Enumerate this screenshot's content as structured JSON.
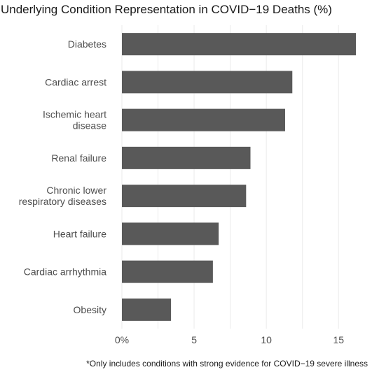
{
  "chart_data": {
    "type": "bar",
    "orientation": "horizontal",
    "title": "Underlying Condition Representation in COVID−19 Deaths (%)",
    "caption": "*Only includes conditions with strong evidence for COVID−19 severe illness",
    "categories": [
      "Diabetes",
      "Cardiac arrest",
      "Ischemic heart disease",
      "Renal failure",
      "Chronic lower respiratory diseases",
      "Heart failure",
      "Cardiac arrhythmia",
      "Obesity"
    ],
    "category_lines": [
      [
        "Diabetes"
      ],
      [
        "Cardiac arrest"
      ],
      [
        "Ischemic heart",
        "disease"
      ],
      [
        "Renal failure"
      ],
      [
        "Chronic lower",
        "respiratory diseases"
      ],
      [
        "Heart failure"
      ],
      [
        "Cardiac arrhythmia"
      ],
      [
        "Obesity"
      ]
    ],
    "values": [
      16.2,
      11.8,
      11.3,
      8.9,
      8.6,
      6.7,
      6.3,
      3.4
    ],
    "xlim": [
      0,
      16.2
    ],
    "xticks": [
      0,
      5,
      10,
      15
    ],
    "xtick_labels": [
      "0%",
      "5",
      "10",
      "15"
    ],
    "grid": true,
    "colors": {
      "bar": "#595959",
      "grid": "#ebebeb",
      "text": "#4d4d4d"
    }
  }
}
